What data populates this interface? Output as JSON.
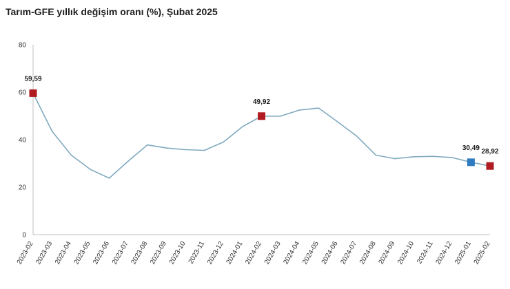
{
  "chart_data": {
    "type": "line",
    "title": "Tarım-GFE yıllık değişim oranı (%), Şubat 2025",
    "xlabel": "",
    "ylabel": "",
    "ylim": [
      0,
      80
    ],
    "yticks": [
      0,
      20,
      40,
      60,
      80
    ],
    "grid": false,
    "categories": [
      "2023-02",
      "2023-03",
      "2023-04",
      "2023-05",
      "2023-06",
      "2023-07",
      "2023-08",
      "2023-09",
      "2023-10",
      "2023-11",
      "2023-12",
      "2024-01",
      "2024-02",
      "2024-03",
      "2024-04",
      "2024-05",
      "2024-06",
      "2024-07",
      "2024-08",
      "2024-09",
      "2024-10",
      "2024-11",
      "2024-12",
      "2025-01",
      "2025-02"
    ],
    "series": [
      {
        "values": [
          59.59,
          43.5,
          33.5,
          27.5,
          23.8,
          31.0,
          37.8,
          36.5,
          35.8,
          35.5,
          39.0,
          45.5,
          49.92,
          49.9,
          52.5,
          53.3,
          47.5,
          41.5,
          33.5,
          32.0,
          32.8,
          33.0,
          32.5,
          30.49,
          28.92
        ],
        "color": "#7fa9bf"
      }
    ],
    "highlighted_points": [
      {
        "index": 0,
        "value": 59.59,
        "label": "59,59",
        "color": "#b01c22"
      },
      {
        "index": 12,
        "value": 49.92,
        "label": "49,92",
        "color": "#b01c22"
      },
      {
        "index": 23,
        "value": 30.49,
        "label": "30,49",
        "color": "#2e7bbf"
      },
      {
        "index": 24,
        "value": 28.92,
        "label": "28,92",
        "color": "#b01c22"
      }
    ]
  }
}
